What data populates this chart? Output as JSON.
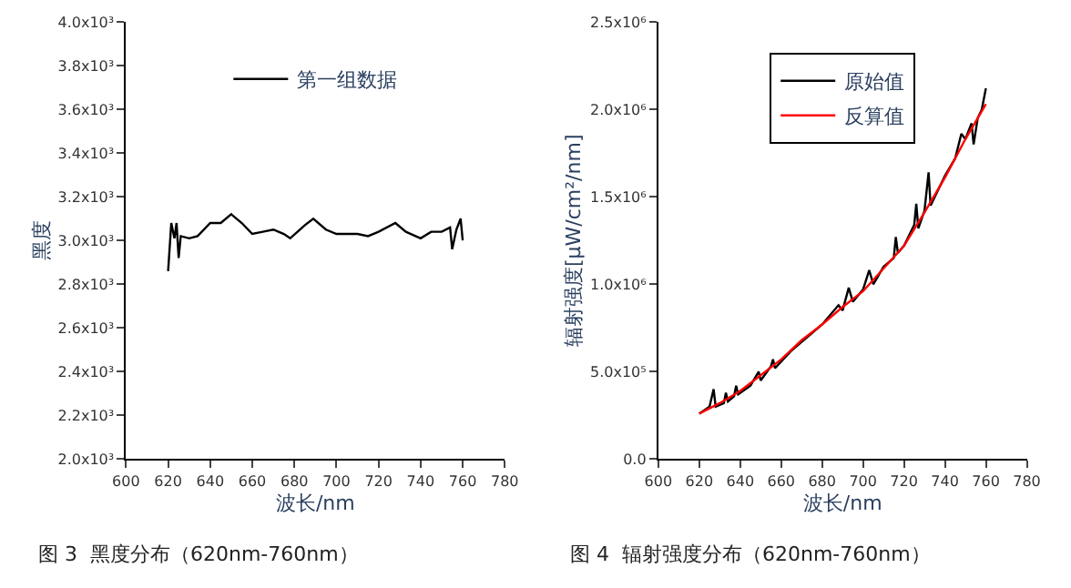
{
  "chart_data": [
    {
      "type": "line",
      "xlabel": "波长/nm",
      "ylabel": "黑度",
      "annotations": [
        "图 3  黑度分布（620nm-760nm）"
      ],
      "legend": "top",
      "xlim": [
        600,
        780
      ],
      "xticks": [
        600,
        620,
        640,
        660,
        680,
        700,
        720,
        740,
        760,
        780
      ],
      "ylim": [
        2000,
        4000
      ],
      "yticks": [
        {
          "value": 2000,
          "label": "2.0x10³"
        },
        {
          "value": 2200,
          "label": "2.2x10³"
        },
        {
          "value": 2400,
          "label": "2.4x10³"
        },
        {
          "value": 2600,
          "label": "2.6x10³"
        },
        {
          "value": 2800,
          "label": "2.8x10³"
        },
        {
          "value": 3000,
          "label": "3.0x10³"
        },
        {
          "value": 3200,
          "label": "3.2x10³"
        },
        {
          "value": 3400,
          "label": "3.4x10³"
        },
        {
          "value": 3600,
          "label": "3.6x10³"
        },
        {
          "value": 3800,
          "label": "3.8x10³"
        },
        {
          "value": 4000,
          "label": "4.0x10³"
        }
      ],
      "series": [
        {
          "name": "第一组数据",
          "color": "#000000",
          "x": [
            620,
            621.5,
            623,
            624,
            625,
            626,
            630,
            634,
            640,
            645,
            650,
            655,
            660,
            665,
            670,
            675,
            678,
            685,
            689,
            695,
            700,
            705,
            710,
            715,
            720,
            728,
            733,
            740,
            745,
            750,
            754,
            755,
            757,
            759,
            760
          ],
          "values": [
            2860,
            3080,
            3010,
            3080,
            2920,
            3020,
            3010,
            3020,
            3080,
            3080,
            3120,
            3080,
            3030,
            3040,
            3050,
            3030,
            3010,
            3070,
            3100,
            3050,
            3030,
            3030,
            3030,
            3020,
            3040,
            3080,
            3040,
            3010,
            3040,
            3040,
            3060,
            2960,
            3050,
            3100,
            3000
          ]
        }
      ]
    },
    {
      "type": "line",
      "xlabel": "波长/nm",
      "ylabel": "辐射强度[μW/cm²/nm]",
      "annotations": [
        "图 4  辐射强度分布（620nm-760nm）"
      ],
      "legend": "top",
      "xlim": [
        600,
        780
      ],
      "xticks": [
        600,
        620,
        640,
        660,
        680,
        700,
        720,
        740,
        760,
        780
      ],
      "ylim": [
        0,
        2500000
      ],
      "yticks": [
        {
          "value": 0,
          "label": "0.0"
        },
        {
          "value": 500000,
          "label": "5.0x10⁵"
        },
        {
          "value": 1000000,
          "label": "1.0x10⁶"
        },
        {
          "value": 1500000,
          "label": "1.5x10⁶"
        },
        {
          "value": 2000000,
          "label": "2.0x10⁶"
        },
        {
          "value": 2500000,
          "label": "2.5x10⁶"
        }
      ],
      "series": [
        {
          "name": "原始值",
          "color": "#000000",
          "x": [
            620,
            625,
            627,
            628,
            632,
            633,
            634,
            637,
            638,
            639,
            645,
            649,
            650,
            655,
            656,
            657,
            665,
            670,
            675,
            680,
            688,
            690,
            693,
            695,
            700,
            703,
            705,
            710,
            715,
            716,
            717,
            720,
            725,
            726,
            727,
            730,
            732,
            733,
            740,
            745,
            748,
            750,
            753,
            754,
            756,
            758,
            760
          ],
          "values": [
            260000,
            300000,
            400000,
            300000,
            320000,
            380000,
            330000,
            360000,
            420000,
            370000,
            420000,
            500000,
            450000,
            530000,
            570000,
            520000,
            620000,
            670000,
            720000,
            770000,
            880000,
            850000,
            980000,
            900000,
            970000,
            1080000,
            1000000,
            1100000,
            1150000,
            1270000,
            1180000,
            1220000,
            1340000,
            1460000,
            1320000,
            1420000,
            1640000,
            1450000,
            1620000,
            1720000,
            1860000,
            1830000,
            1920000,
            1800000,
            1950000,
            2000000,
            2120000
          ]
        },
        {
          "name": "反算值",
          "color": "#ff0000",
          "x": [
            620,
            630,
            640,
            650,
            660,
            670,
            680,
            690,
            700,
            710,
            720,
            730,
            740,
            750,
            760
          ],
          "values": [
            260000,
            320000,
            390000,
            480000,
            570000,
            680000,
            770000,
            870000,
            960000,
            1090000,
            1220000,
            1410000,
            1610000,
            1830000,
            2030000
          ]
        }
      ]
    }
  ]
}
